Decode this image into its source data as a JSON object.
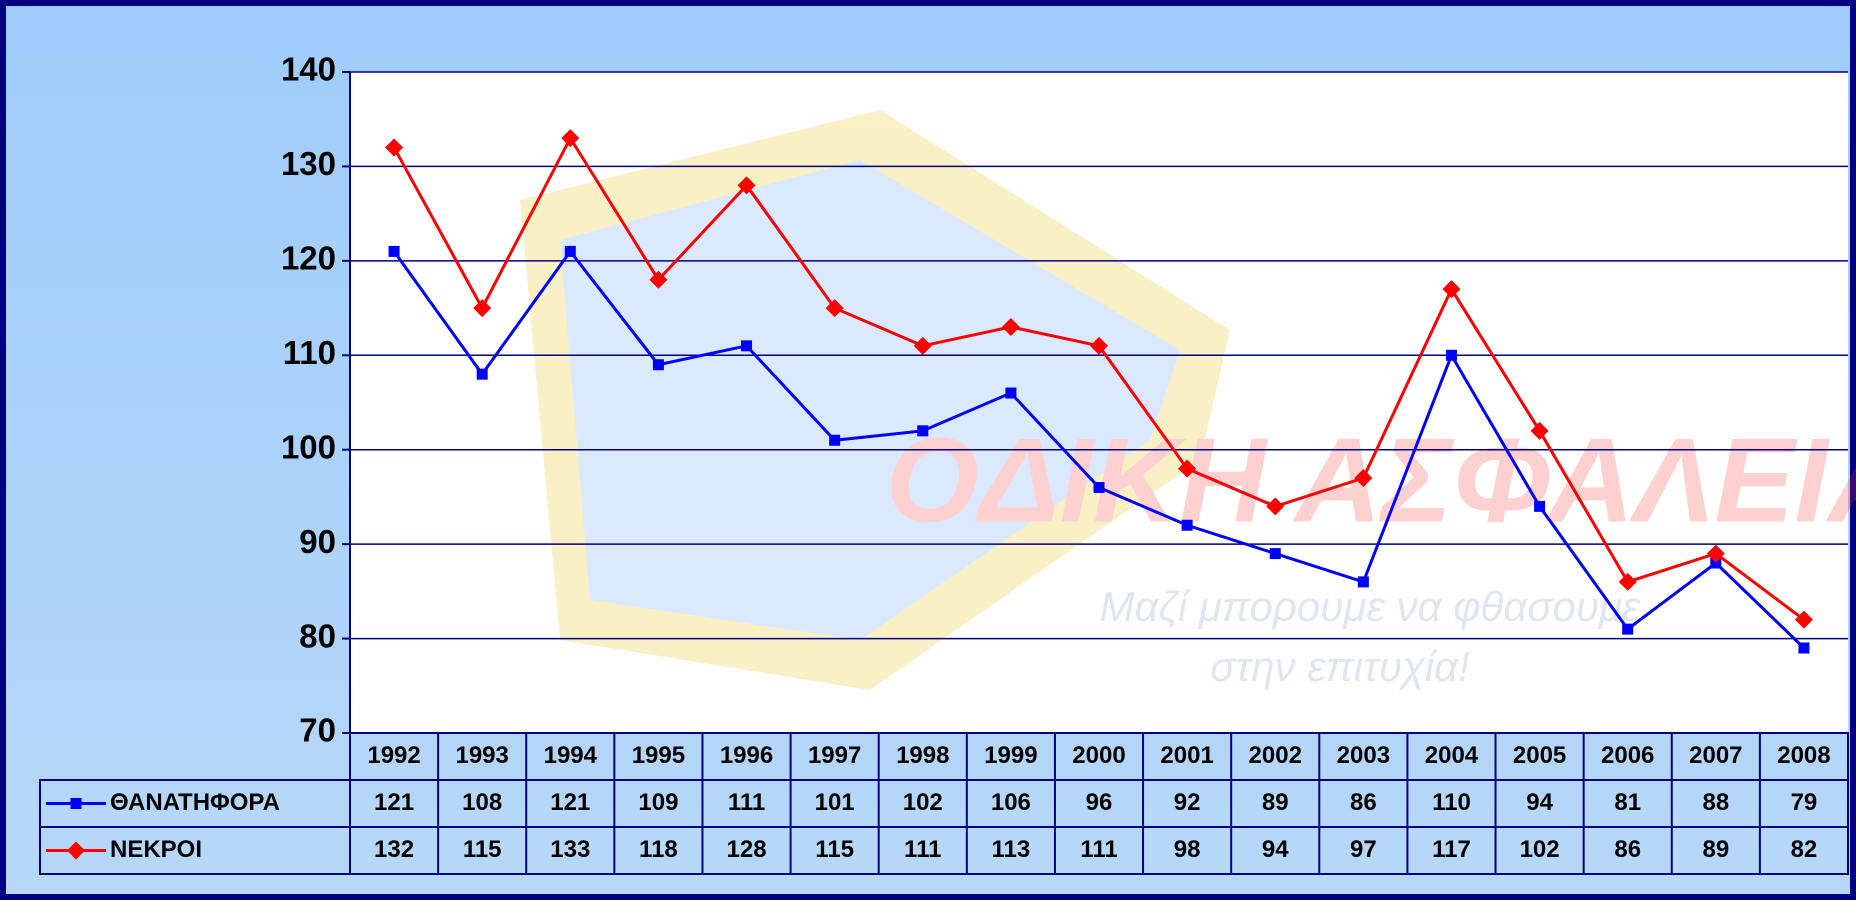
{
  "chart_data": {
    "type": "line",
    "categories": [
      "1992",
      "1993",
      "1994",
      "1995",
      "1996",
      "1997",
      "1998",
      "1999",
      "2000",
      "2001",
      "2002",
      "2003",
      "2004",
      "2005",
      "2006",
      "2007",
      "2008"
    ],
    "series": [
      {
        "name": "ΘΑΝΑΤΗΦΟΡΑ",
        "color": "#0000ff",
        "marker": "square",
        "values": [
          121,
          108,
          121,
          109,
          111,
          101,
          102,
          106,
          96,
          92,
          89,
          86,
          110,
          94,
          81,
          88,
          79
        ]
      },
      {
        "name": "ΝΕΚΡΟΙ",
        "color": "#ff0000",
        "marker": "diamond",
        "values": [
          132,
          115,
          133,
          118,
          128,
          115,
          111,
          113,
          111,
          98,
          94,
          97,
          117,
          102,
          86,
          89,
          82
        ]
      }
    ],
    "ylim": [
      70,
      140
    ],
    "yticks": [
      70,
      80,
      90,
      100,
      110,
      120,
      130,
      140
    ],
    "grid": true,
    "data_table": true
  },
  "watermark": {
    "title": "ΟΔΙΚΗ ΑΣΦΑΛΕΙΑ",
    "slogan": [
      "Μαζί μπορουμε να φθασουμε",
      "στην επιτυχία!"
    ]
  }
}
